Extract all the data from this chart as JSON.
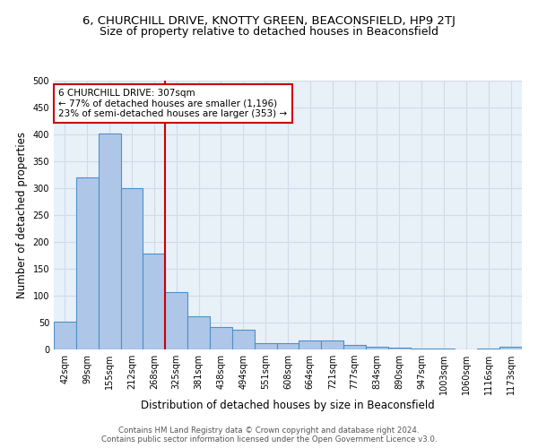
{
  "title": "6, CHURCHILL DRIVE, KNOTTY GREEN, BEACONSFIELD, HP9 2TJ",
  "subtitle": "Size of property relative to detached houses in Beaconsfield",
  "xlabel": "Distribution of detached houses by size in Beaconsfield",
  "ylabel": "Number of detached properties",
  "categories": [
    "42sqm",
    "99sqm",
    "155sqm",
    "212sqm",
    "268sqm",
    "325sqm",
    "381sqm",
    "438sqm",
    "494sqm",
    "551sqm",
    "608sqm",
    "664sqm",
    "721sqm",
    "777sqm",
    "834sqm",
    "890sqm",
    "947sqm",
    "1003sqm",
    "1060sqm",
    "1116sqm",
    "1173sqm"
  ],
  "values": [
    52,
    320,
    402,
    300,
    178,
    107,
    62,
    42,
    37,
    12,
    12,
    16,
    16,
    9,
    5,
    4,
    1,
    1,
    0,
    1,
    5
  ],
  "bar_color": "#aec6e8",
  "bar_edge_color": "#4f90c7",
  "red_line_index": 5,
  "red_line_color": "#cc0000",
  "annotation_line1": "6 CHURCHILL DRIVE: 307sqm",
  "annotation_line2": "← 77% of detached houses are smaller (1,196)",
  "annotation_line3": "23% of semi-detached houses are larger (353) →",
  "annotation_box_color": "#cc0000",
  "ylim": [
    0,
    500
  ],
  "yticks": [
    0,
    50,
    100,
    150,
    200,
    250,
    300,
    350,
    400,
    450,
    500
  ],
  "grid_color": "#d0dce8",
  "bg_color": "#e8f0f8",
  "footer_line1": "Contains HM Land Registry data © Crown copyright and database right 2024.",
  "footer_line2": "Contains public sector information licensed under the Open Government Licence v3.0.",
  "title_fontsize": 9.5,
  "subtitle_fontsize": 9.0,
  "tick_fontsize": 7.0,
  "label_fontsize": 8.5,
  "annot_fontsize": 7.5,
  "footer_fontsize": 6.2
}
